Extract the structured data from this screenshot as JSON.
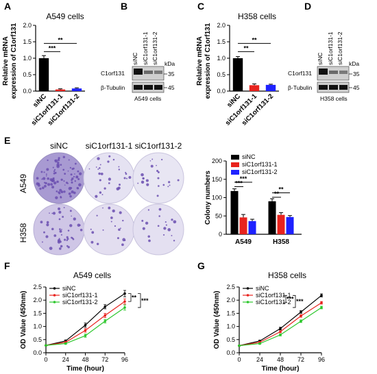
{
  "figure": {
    "panel_labels": [
      "A",
      "B",
      "C",
      "D",
      "E",
      "F",
      "G"
    ],
    "colors": {
      "siNC": "#000000",
      "siC1orf131-1": "#e8231e",
      "siC1orf131-2": "#1e22ff",
      "green": "#2cc72c",
      "stain": "#6b4fb0"
    }
  },
  "westerns": [
    {
      "id": "B",
      "lanes": [
        "siNC",
        "siC1orf131-1",
        "siC1orf131-2"
      ],
      "kda_label": "kDa",
      "rows": [
        {
          "protein": "C1orf131",
          "marker": "35"
        },
        {
          "protein": "β-Tubulin",
          "marker": "45"
        }
      ],
      "caption": "A549 cells"
    },
    {
      "id": "D",
      "lanes": [
        "siNC",
        "siC1orf131-1",
        "siC1orf131-2"
      ],
      "kda_label": "kDa",
      "rows": [
        {
          "protein": "C1orf131",
          "marker": "35"
        },
        {
          "protein": "β-Tubulin",
          "marker": "45"
        }
      ],
      "caption": "H358 cells"
    }
  ],
  "colony_images": {
    "column_labels": [
      "siNC",
      "siC1orf131-1",
      "siC1orf131-2"
    ],
    "row_labels": [
      "A549",
      "H358"
    ]
  },
  "chart_data": [
    {
      "id": "A",
      "type": "bar",
      "title": "A549 cells",
      "ylabel": "Relative mRNA expression of C1orf131",
      "categories": [
        "siNC",
        "siC1orf131-1",
        "siC1orf131-2"
      ],
      "values": [
        1.0,
        0.05,
        0.08
      ],
      "errors": [
        0.08,
        0.02,
        0.02
      ],
      "ylim": [
        0,
        2.0
      ],
      "yticks": [
        "0.0",
        "0.5",
        "1.0",
        "1.5",
        "2.0"
      ],
      "significance": [
        "**",
        "***"
      ]
    },
    {
      "id": "C",
      "type": "bar",
      "title": "H358 cells",
      "ylabel": "Relative mRNA expression of C1orf131",
      "categories": [
        "siNC",
        "siC1orf131-1",
        "siC1orf131-2"
      ],
      "values": [
        1.0,
        0.18,
        0.19
      ],
      "errors": [
        0.05,
        0.04,
        0.02
      ],
      "ylim": [
        0,
        2.0
      ],
      "yticks": [
        "0.0",
        "0.5",
        "1.0",
        "1.5",
        "2.0"
      ],
      "significance": [
        "**",
        "**"
      ]
    },
    {
      "id": "E",
      "type": "bar",
      "ylabel": "Colony numbers",
      "categories": [
        "A549",
        "H358"
      ],
      "series": [
        {
          "name": "siNC",
          "values": [
            118,
            90
          ],
          "errors": [
            6,
            7
          ]
        },
        {
          "name": "siC1orf131-1",
          "values": [
            46,
            53
          ],
          "errors": [
            8,
            6
          ]
        },
        {
          "name": "siC1orf131-2",
          "values": [
            36,
            47
          ],
          "errors": [
            5,
            4
          ]
        }
      ],
      "ylim": [
        0,
        200
      ],
      "yticks": [
        "0",
        "50",
        "100",
        "150",
        "200"
      ],
      "legend": "top-right",
      "significance": [
        "***",
        "***",
        "**",
        "**"
      ]
    },
    {
      "id": "F",
      "type": "line",
      "title": "A549 cells",
      "xlabel": "Time (hour)",
      "ylabel": "OD Value (450nm)",
      "x": [
        0,
        24,
        48,
        72,
        96
      ],
      "series": [
        {
          "name": "siNC",
          "values": [
            0.28,
            0.45,
            1.05,
            1.75,
            2.25
          ],
          "errors": [
            0.02,
            0.04,
            0.08,
            0.08,
            0.12
          ]
        },
        {
          "name": "siC1orf131-1",
          "values": [
            0.28,
            0.4,
            0.85,
            1.42,
            1.95
          ],
          "errors": [
            0.02,
            0.03,
            0.07,
            0.08,
            0.1
          ]
        },
        {
          "name": "siC1orf131-2",
          "values": [
            0.28,
            0.35,
            0.65,
            1.2,
            1.72
          ],
          "errors": [
            0.02,
            0.03,
            0.06,
            0.07,
            0.1
          ]
        }
      ],
      "xlim": [
        0,
        96
      ],
      "xticks": [
        "0",
        "24",
        "48",
        "72",
        "96"
      ],
      "ylim": [
        0,
        2.5
      ],
      "yticks": [
        "0.0",
        "0.5",
        "1.0",
        "1.5",
        "2.0",
        "2.5"
      ],
      "legend": "top-left",
      "significance": [
        "**",
        "***"
      ]
    },
    {
      "id": "G",
      "type": "line",
      "title": "H358 cells",
      "xlabel": "Time (hour)",
      "ylabel": "OD Value (450nm)",
      "x": [
        0,
        24,
        48,
        72,
        96
      ],
      "series": [
        {
          "name": "siNC",
          "values": [
            0.27,
            0.45,
            0.92,
            1.55,
            2.18
          ],
          "errors": [
            0.02,
            0.03,
            0.05,
            0.05,
            0.06
          ]
        },
        {
          "name": "siC1orf131-1",
          "values": [
            0.27,
            0.4,
            0.8,
            1.4,
            1.9
          ],
          "errors": [
            0.02,
            0.03,
            0.04,
            0.05,
            0.05
          ]
        },
        {
          "name": "siC1orf131-2",
          "values": [
            0.27,
            0.35,
            0.68,
            1.2,
            1.72
          ],
          "errors": [
            0.02,
            0.03,
            0.04,
            0.05,
            0.05
          ]
        }
      ],
      "xlim": [
        0,
        96
      ],
      "xticks": [
        "0",
        "24",
        "48",
        "72",
        "96"
      ],
      "ylim": [
        0,
        2.5
      ],
      "yticks": [
        "0.0",
        "0.5",
        "1.0",
        "1.5",
        "2.0",
        "2.5"
      ],
      "legend": "top-left",
      "significance": [
        "***",
        "***"
      ]
    }
  ]
}
